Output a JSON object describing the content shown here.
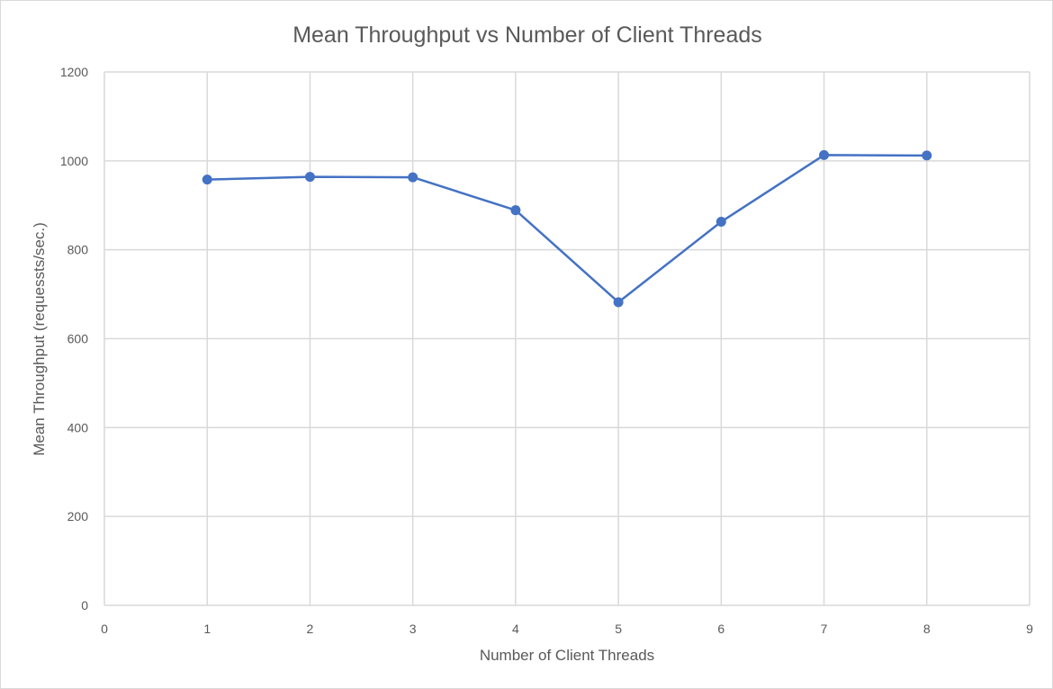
{
  "chart_data": {
    "type": "scatter",
    "title": "Mean Throughput vs Number of Client Threads",
    "xlabel": "Number of Client Threads",
    "ylabel": "Mean Throughput (requessts/sec.)",
    "xlim": [
      0,
      9
    ],
    "ylim": [
      0,
      1200
    ],
    "x_ticks": [
      0,
      1,
      2,
      3,
      4,
      5,
      6,
      7,
      8,
      9
    ],
    "y_ticks": [
      0,
      200,
      400,
      600,
      800,
      1000,
      1200
    ],
    "grid": true,
    "legend": "none",
    "series": [
      {
        "x": [
          1,
          2,
          3,
          4,
          5,
          6,
          7,
          8
        ],
        "y": [
          958,
          964,
          963,
          889,
          682,
          863,
          1013,
          1012
        ],
        "color": "#4472c4",
        "marker": "circle",
        "line": true
      }
    ]
  }
}
